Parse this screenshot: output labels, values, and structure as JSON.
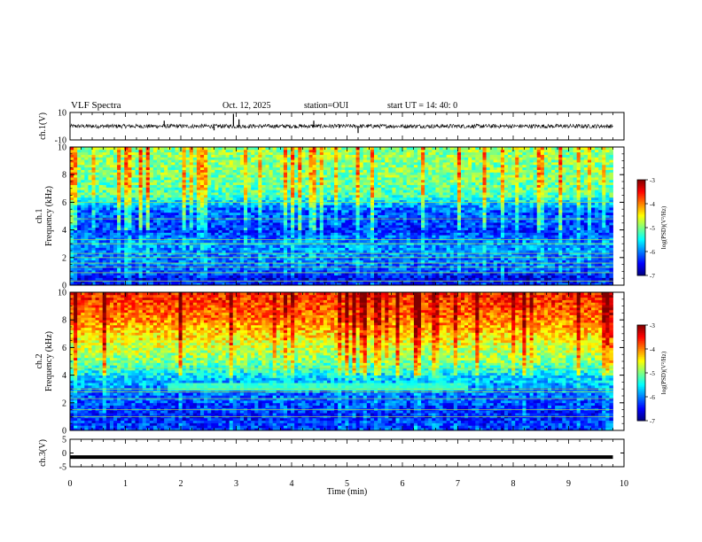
{
  "header": {
    "title": "VLF Spectra",
    "date": "Oct. 12, 2025",
    "station": "station=OUI",
    "start": "start  UT  =   14: 40: 0"
  },
  "chart_data": [
    {
      "type": "line",
      "name": "ch1-waveform",
      "ylabel": "ch.1(V)",
      "ylim": [
        -10,
        10
      ],
      "yticks": [
        10,
        -10
      ],
      "baseline": 0,
      "noise_amplitude": 1.5,
      "spikes": [
        {
          "x": 1.7,
          "y": 4
        },
        {
          "x": 2.6,
          "y": -3
        },
        {
          "x": 2.95,
          "y": 9
        },
        {
          "x": 3.05,
          "y": 5
        },
        {
          "x": 4.4,
          "y": 4
        },
        {
          "x": 5.2,
          "y": -5
        }
      ]
    },
    {
      "type": "heatmap",
      "name": "ch1-spectrogram",
      "ylabel_lines": [
        "ch.1",
        "Frequency (kHz)"
      ],
      "ylim": [
        0,
        10
      ],
      "yticks": [
        0,
        2,
        4,
        6,
        8,
        10
      ],
      "xlim": [
        0,
        9.8
      ],
      "colorbar": {
        "label": "log(PSD)(V²/Hz)",
        "range": [
          -7,
          -3
        ],
        "ticks": [
          -3,
          -4,
          -5,
          -6,
          -7
        ]
      },
      "profile": [
        {
          "f": 0.0,
          "v": -6.3
        },
        {
          "f": 0.5,
          "v": -6.6
        },
        {
          "f": 1.0,
          "v": -6.2
        },
        {
          "f": 2.0,
          "v": -6.0
        },
        {
          "f": 3.0,
          "v": -5.9
        },
        {
          "f": 4.0,
          "v": -6.3
        },
        {
          "f": 5.5,
          "v": -6.1
        },
        {
          "f": 6.5,
          "v": -5.2
        },
        {
          "f": 8.0,
          "v": -5.0
        },
        {
          "f": 10.0,
          "v": -4.9
        }
      ],
      "lines_khz": [
        0.3,
        0.9,
        1.3,
        1.6,
        2.0,
        2.3,
        3.0,
        3.3,
        4.8,
        6.0
      ],
      "bands": []
    },
    {
      "type": "heatmap",
      "name": "ch2-spectrogram",
      "ylabel_lines": [
        "ch.2",
        "Frequency (kHz)"
      ],
      "ylim": [
        0,
        10
      ],
      "yticks": [
        0,
        2,
        4,
        6,
        8,
        10
      ],
      "xlim": [
        0,
        9.8
      ],
      "colorbar": {
        "label": "log(PSD)(V²/Hz)",
        "range": [
          -7,
          -3
        ],
        "ticks": [
          -3,
          -4,
          -5,
          -6,
          -7
        ]
      },
      "profile": [
        {
          "f": 0.0,
          "v": -6.2
        },
        {
          "f": 1.0,
          "v": -6.4
        },
        {
          "f": 2.0,
          "v": -6.2
        },
        {
          "f": 3.0,
          "v": -6.0
        },
        {
          "f": 4.0,
          "v": -5.6
        },
        {
          "f": 5.0,
          "v": -5.0
        },
        {
          "f": 6.0,
          "v": -4.7
        },
        {
          "f": 8.0,
          "v": -4.0
        },
        {
          "f": 10.0,
          "v": -3.6
        }
      ],
      "lines_khz": [
        1.0,
        1.5,
        2.3,
        2.8,
        3.0,
        4.5
      ],
      "bands": [
        {
          "t0": 1.75,
          "t1": 7.2,
          "f0": 3.0,
          "f1": 3.5,
          "v": -5.3
        }
      ]
    },
    {
      "type": "line",
      "name": "ch3-waveform",
      "ylabel": "ch.3(V)",
      "ylim": [
        -5,
        5
      ],
      "yticks": [
        5,
        0,
        -5
      ],
      "baseline": -1.5,
      "noise_amplitude": 0.3,
      "spikes": []
    }
  ],
  "xaxis": {
    "label": "Time (min)",
    "ticks": [
      0,
      1,
      2,
      3,
      4,
      5,
      6,
      7,
      8,
      9,
      10
    ],
    "range": [
      0,
      10
    ]
  }
}
